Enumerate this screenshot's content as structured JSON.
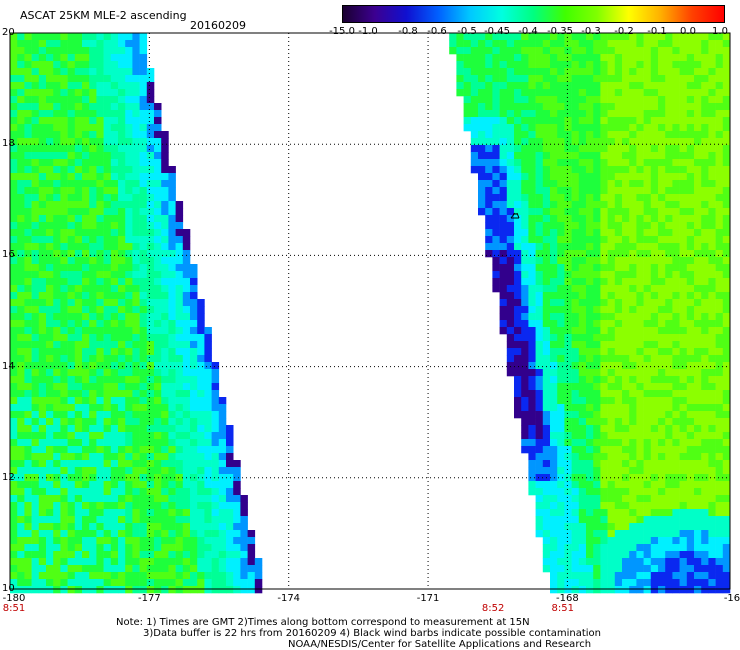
{
  "header": {
    "title": "ASCAT 25KM MLE-2 ascending",
    "date": "20160209"
  },
  "colorbar": {
    "labels": [
      "-15.0",
      "-1.0",
      "-0.8",
      "-0.6",
      "-0.5",
      "-0.45",
      "-0.4",
      "-0.35",
      "-0.3",
      "-0.2",
      "-0.1",
      "0.0",
      "1.0"
    ],
    "colors": [
      "#1a0030",
      "#3c0090",
      "#1010d0",
      "#0060ff",
      "#00c8ff",
      "#00ffe0",
      "#00ff80",
      "#40ff00",
      "#80ff00",
      "#ffff00",
      "#ffb000",
      "#ff4000",
      "#ff0000"
    ]
  },
  "map": {
    "lat_labels": [
      "20",
      "18",
      "16",
      "14",
      "12",
      "10"
    ],
    "lon_labels": [
      "-180",
      "-177",
      "-174",
      "-171",
      "-168",
      "-16"
    ],
    "time_labels": [
      {
        "lon": -180,
        "text": "8:51"
      },
      {
        "lon": -169.6,
        "text": "8:52"
      },
      {
        "lon": -168.1,
        "text": "8:51"
      }
    ],
    "contamination_marker": "wind-barb-icon"
  },
  "notes": {
    "line1": "Note: 1) Times are GMT 2)Times along bottom correspond to measurement at 15N",
    "line2": "3)Data buffer is 22 hrs from 20160209 4) Black wind barbs indicate possible contamination",
    "line3": "NOAA/NESDIS/Center for Satellite Applications and Research"
  }
}
